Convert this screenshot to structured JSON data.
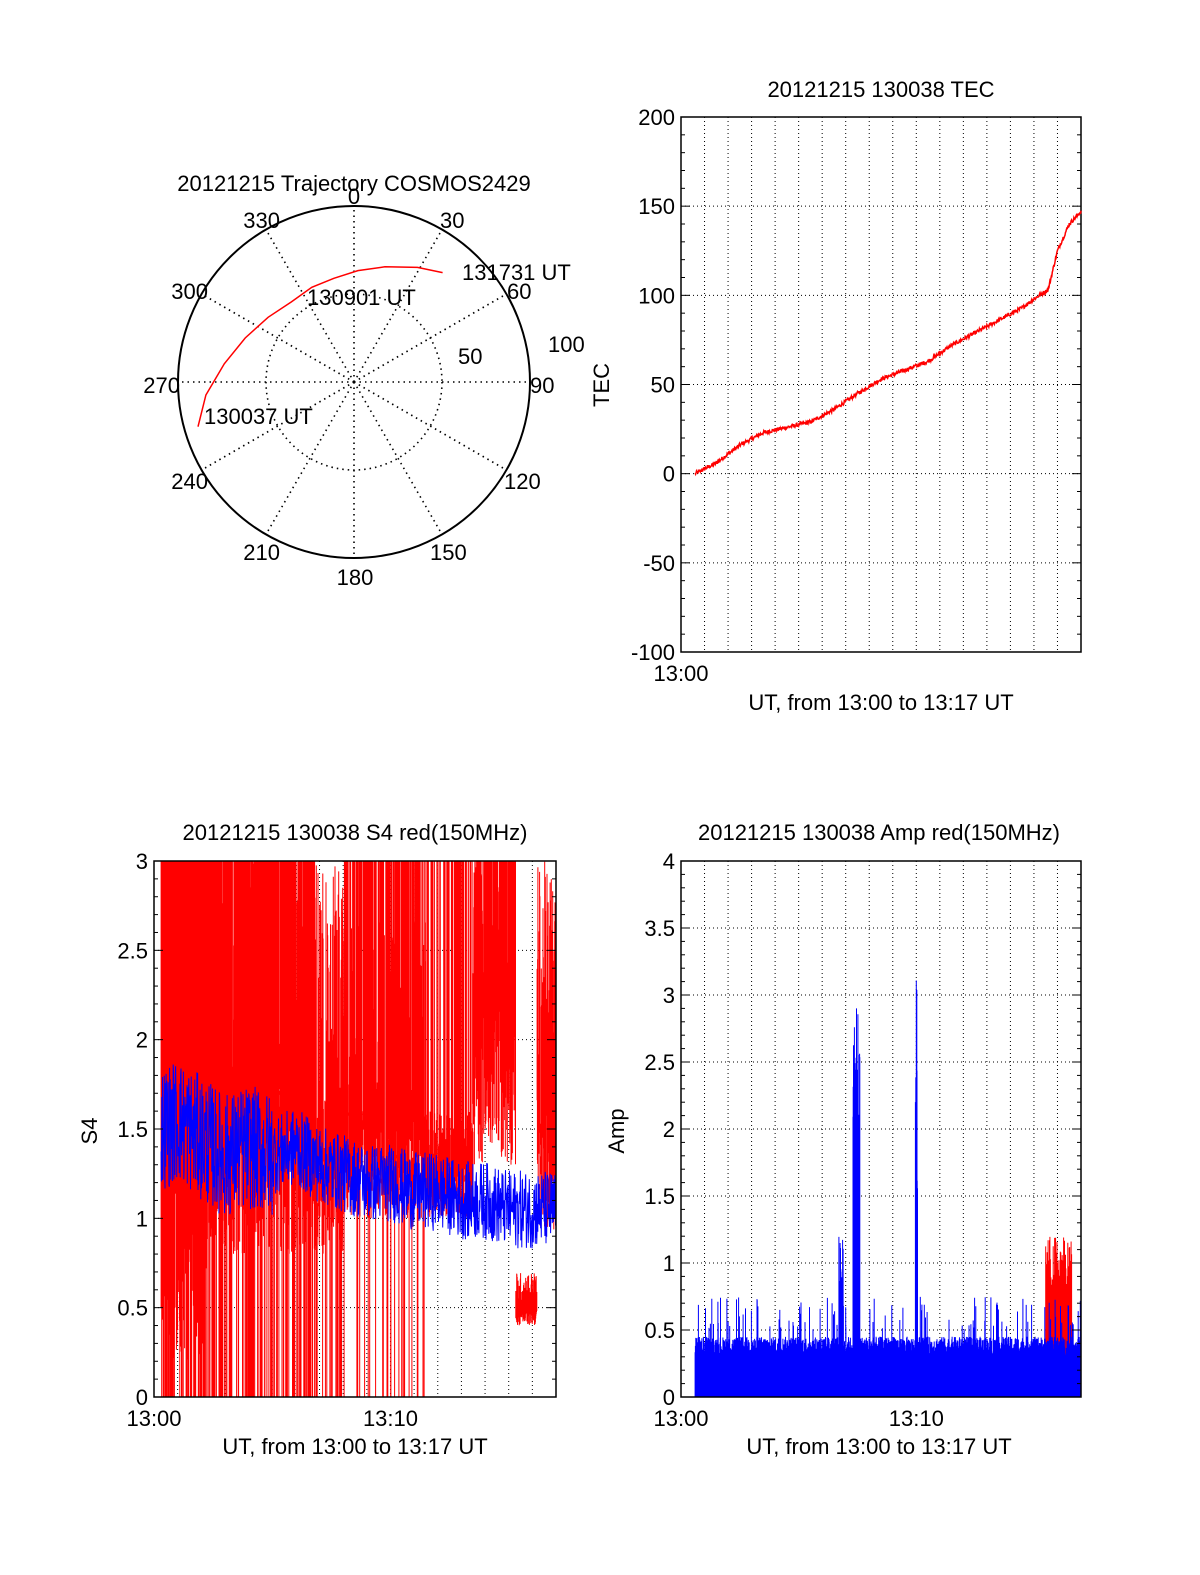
{
  "chart_data": [
    {
      "type": "polar",
      "title": "20121215 Trajectory COSMOS2429",
      "azimuth_labels": [
        "0",
        "30",
        "60",
        "90",
        "120",
        "150",
        "180",
        "210",
        "240",
        "270",
        "300",
        "330"
      ],
      "elevation_labels": [
        "50",
        "100"
      ],
      "track": [
        {
          "az": 254,
          "zen": 83
        },
        {
          "az": 265,
          "zen": 76
        },
        {
          "az": 278,
          "zen": 67
        },
        {
          "az": 292,
          "zen": 60
        },
        {
          "az": 307,
          "zen": 55
        },
        {
          "az": 322,
          "zen": 52
        },
        {
          "az": 336,
          "zen": 53
        },
        {
          "az": 349,
          "zen": 54
        },
        {
          "az": 2,
          "zen": 57
        },
        {
          "az": 15,
          "zen": 61
        },
        {
          "az": 29,
          "zen": 67
        },
        {
          "az": 39,
          "zen": 72
        }
      ],
      "annotations": [
        "131731 UT",
        "130901 UT",
        "130037 UT"
      ]
    },
    {
      "type": "line",
      "title": "20121215 130038 TEC",
      "xlabel": "UT, from 13:00 to 13:17 UT",
      "ylabel": "TEC",
      "xlim": [
        0,
        17
      ],
      "ylim": [
        -100,
        200
      ],
      "yticks": [
        "200",
        "150",
        "100",
        "50",
        "0",
        "-50",
        "-100"
      ],
      "xticks": [
        {
          "x": 0,
          "label": "13:00"
        }
      ],
      "grid": true,
      "series": [
        {
          "color": "#ff0000",
          "x": [
            0.6,
            1.5,
            2.5,
            3.5,
            4.5,
            5.5,
            6.5,
            7.5,
            8.5,
            9.5,
            10.5,
            11.5,
            12.5,
            13.5,
            14.5,
            15.0,
            15.6,
            16.0,
            16.5,
            17.0
          ],
          "values": [
            0,
            6,
            16,
            23,
            26,
            29,
            36,
            45,
            53,
            58,
            63,
            72,
            79,
            86,
            93,
            98,
            103,
            125,
            140,
            147
          ]
        }
      ]
    },
    {
      "type": "line",
      "title": "20121215 130038 S4 red(150MHz)",
      "xlabel": "UT, from 13:00 to 13:17 UT",
      "ylabel": "S4",
      "xlim": [
        0,
        17
      ],
      "ylim": [
        0,
        3
      ],
      "yticks": [
        "3",
        "2.5",
        "2",
        "1.5",
        "1",
        "0.5",
        "0"
      ],
      "xticks": [
        {
          "x": 0,
          "label": "13:00"
        },
        {
          "x": 10,
          "label": "13:10"
        }
      ],
      "grid": true,
      "series": [
        {
          "color": "#ff0000",
          "x": [
            0.3,
            17
          ],
          "values": [
            0,
            3
          ]
        },
        {
          "color": "#0000ff",
          "x": [
            0.3,
            1.0,
            2.0,
            3.0,
            4.0,
            5.0,
            6.0,
            7.0,
            8.0,
            9.0,
            10.0,
            11.0,
            12.0,
            13.0,
            14.0,
            15.0,
            16.0,
            17.0
          ],
          "values": [
            1.5,
            1.55,
            1.45,
            1.35,
            1.4,
            1.35,
            1.4,
            1.3,
            1.25,
            1.2,
            1.2,
            1.15,
            1.15,
            1.1,
            1.1,
            1.05,
            1.05,
            1.05
          ]
        }
      ]
    },
    {
      "type": "line",
      "title": "20121215 130038 Amp red(150MHz)",
      "xlabel": "UT, from 13:00 to 13:17 UT",
      "ylabel": "Amp",
      "xlim": [
        0,
        17
      ],
      "ylim": [
        0,
        4
      ],
      "yticks": [
        "4",
        "3.5",
        "3",
        "2.5",
        "2",
        "1.5",
        "1",
        "0.5",
        "0"
      ],
      "xticks": [
        {
          "x": 0,
          "label": "13:00"
        },
        {
          "x": 10,
          "label": "13:10"
        }
      ],
      "grid": true,
      "series": [
        {
          "color": "#ff0000",
          "x": [
            15.5,
            16.0,
            16.5
          ],
          "values": [
            1.0,
            1.2,
            1.1
          ]
        },
        {
          "color": "#0000ff",
          "x": [
            0.6,
            6.8,
            7.4,
            7.9,
            10.0,
            12.0,
            16.8
          ],
          "values": [
            0.45,
            1.2,
            2.9,
            0.6,
            3.2,
            0.75,
            0.8
          ]
        }
      ]
    }
  ]
}
